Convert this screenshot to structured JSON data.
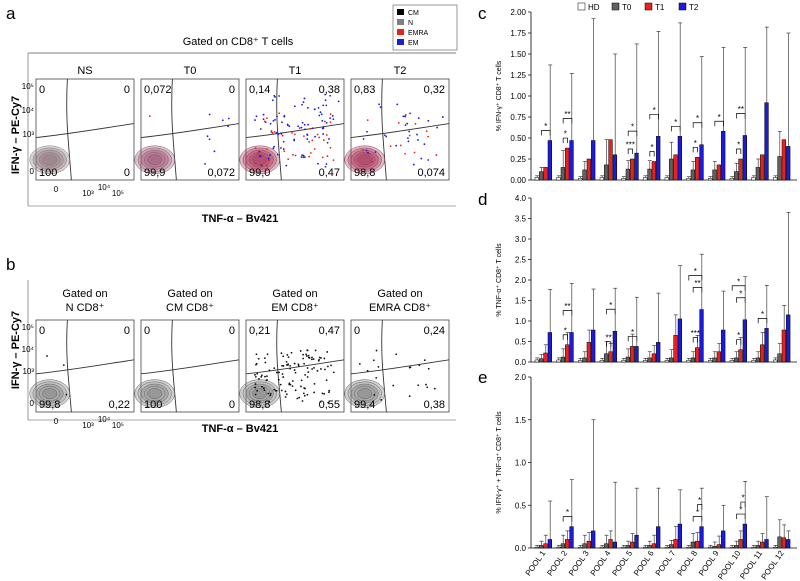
{
  "figure": {
    "panel_labels": {
      "a": "a",
      "b": "b",
      "c": "c",
      "d": "d",
      "e": "e"
    }
  },
  "panel_a": {
    "gate_title": "Gated on CD8⁺ T cells",
    "y_axis_label": "IFN-γ – PE-Cy7",
    "x_axis_label": "TNF-α – Bv421",
    "legend": [
      {
        "label": "CM",
        "color": "#000000"
      },
      {
        "label": "N",
        "color": "#808080"
      },
      {
        "label": "EMRA",
        "color": "#e8231e"
      },
      {
        "label": "EM",
        "color": "#1c1cd6"
      }
    ],
    "plots": [
      {
        "title": "NS",
        "ul": "0",
        "ur": "0",
        "ll": "100",
        "lr": "0"
      },
      {
        "title": "T0",
        "ul": "0,072",
        "ur": "0",
        "ll": "99,9",
        "lr": "0,072"
      },
      {
        "title": "T1",
        "ul": "0,14",
        "ur": "0,38",
        "ll": "99,0",
        "lr": "0,47"
      },
      {
        "title": "T2",
        "ul": "0,83",
        "ur": "0,32",
        "ll": "98,8",
        "lr": "0,074"
      }
    ],
    "y_ticks": [
      "10⁵",
      "10⁴",
      "10³",
      "0"
    ],
    "x_ticks": [
      "0",
      "10³",
      "10⁴",
      "10⁵"
    ]
  },
  "panel_b": {
    "y_axis_label": "IFN-γ – PE-Cy7",
    "x_axis_label": "TNF-α – Bv421",
    "plots": [
      {
        "title_line1": "Gated on",
        "title_line2": "N CD8⁺",
        "ul": "0",
        "ur": "0",
        "ll": "99,8",
        "lr": "0,22"
      },
      {
        "title_line1": "Gated on",
        "title_line2": "CM CD8⁺",
        "ul": "0",
        "ur": "0",
        "ll": "100",
        "lr": "0"
      },
      {
        "title_line1": "Gated on",
        "title_line2": "EM CD8⁺",
        "ul": "0,21",
        "ur": "0,47",
        "ll": "98,8",
        "lr": "0,55"
      },
      {
        "title_line1": "Gated on",
        "title_line2": "EMRA CD8⁺",
        "ul": "0",
        "ur": "0,24",
        "ll": "99,4",
        "lr": "0,38"
      }
    ],
    "y_ticks": [
      "10⁵",
      "10⁴",
      "10³",
      "0"
    ],
    "x_ticks": [
      "0",
      "10³",
      "10⁴",
      "10⁵"
    ]
  },
  "chart_data": [
    {
      "type": "bar",
      "panel": "c",
      "legend": [
        "HD",
        "T0",
        "T1",
        "T2"
      ],
      "ylabel": "% IFN-γ⁺ CD8⁺ T cells",
      "ylim": [
        0,
        2.0
      ],
      "yticks": [
        "0.00",
        "0.25",
        "0.50",
        "0.75",
        "1.00",
        "1.25",
        "1.50",
        "1.75",
        "2.00"
      ],
      "categories": [
        "POOL 1",
        "POOL 2",
        "POOL 3",
        "POOL 4",
        "POOL 5",
        "POOL 6",
        "POOL 7",
        "POOL 8",
        "POOL 9",
        "POOL 10",
        "POOL 11",
        "POOL 12"
      ],
      "series": [
        {
          "name": "HD",
          "color": "#ffffff",
          "values": [
            0.03,
            0.03,
            0.02,
            0.03,
            0.02,
            0.03,
            0.03,
            0.02,
            0.02,
            0.02,
            0.03,
            0.03
          ],
          "errors": [
            0.02,
            0.02,
            0.02,
            0.02,
            0.02,
            0.02,
            0.02,
            0.02,
            0.02,
            0.02,
            0.02,
            0.02
          ]
        },
        {
          "name": "T0",
          "color": "#606060",
          "values": [
            0.1,
            0.15,
            0.12,
            0.18,
            0.13,
            0.13,
            0.25,
            0.12,
            0.12,
            0.1,
            0.15,
            0.28
          ],
          "errors": [
            0.05,
            0.2,
            0.1,
            0.3,
            0.1,
            0.1,
            0.2,
            0.1,
            0.1,
            0.1,
            0.1,
            0.3
          ]
        },
        {
          "name": "T1",
          "color": "#e8231e",
          "values": [
            0.15,
            0.38,
            0.25,
            0.48,
            0.25,
            0.22,
            0.3,
            0.27,
            0.18,
            0.25,
            0.3,
            0.48
          ]
        },
        {
          "name": "T2",
          "color": "#1c1cd6",
          "values": [
            0.47,
            0.47,
            0.47,
            0.3,
            0.32,
            0.52,
            0.52,
            0.42,
            0.58,
            0.53,
            0.92,
            0.4
          ],
          "errors": [
            0.9,
            0.8,
            1.45,
            1.2,
            1.3,
            1.25,
            1.35,
            1.05,
            1.0,
            1.05,
            0.9,
            1.35
          ]
        }
      ],
      "significance": [
        {
          "pool": 1,
          "from": "T0",
          "to": "T2",
          "label": "*"
        },
        {
          "pool": 2,
          "from": "T0",
          "to": "T1",
          "label": "*"
        },
        {
          "pool": 2,
          "from": "T0",
          "to": "T2",
          "label": "**"
        },
        {
          "pool": 5,
          "from": "T0",
          "to": "T1",
          "label": "***"
        },
        {
          "pool": 5,
          "from": "T0",
          "to": "T2",
          "label": "*"
        },
        {
          "pool": 6,
          "from": "T0",
          "to": "T1",
          "label": "*"
        },
        {
          "pool": 6,
          "from": "T0",
          "to": "T2",
          "label": "*"
        },
        {
          "pool": 7,
          "from": "T0",
          "to": "T2",
          "label": "*"
        },
        {
          "pool": 8,
          "from": "T0",
          "to": "T1",
          "label": "*"
        },
        {
          "pool": 8,
          "from": "T0",
          "to": "T2",
          "label": "*"
        },
        {
          "pool": 9,
          "from": "T0",
          "to": "T2",
          "label": "*"
        },
        {
          "pool": 10,
          "from": "T0",
          "to": "T1",
          "label": "*"
        },
        {
          "pool": 10,
          "from": "T0",
          "to": "T2",
          "label": "**"
        }
      ]
    },
    {
      "type": "bar",
      "panel": "d",
      "ylabel": "% TNF-α⁺ CD8⁺ T cells",
      "ylim": [
        0,
        4.0
      ],
      "yticks": [
        "0.0",
        "0.5",
        "1.0",
        "1.5",
        "2.0",
        "2.5",
        "3.0",
        "3.5",
        "4.0"
      ],
      "categories": [
        "POOL 1",
        "POOL 2",
        "POOL 3",
        "POOL 4",
        "POOL 5",
        "POOL 6",
        "POOL 7",
        "POOL 8",
        "POOL 9",
        "POOL 10",
        "POOL 11",
        "POOL 12"
      ],
      "series": [
        {
          "name": "HD",
          "color": "#ffffff",
          "values": [
            0.05,
            0.05,
            0.04,
            0.04,
            0.04,
            0.04,
            0.04,
            0.04,
            0.04,
            0.04,
            0.04,
            0.05
          ],
          "errors": [
            0.05,
            0.05,
            0.05,
            0.05,
            0.05,
            0.05,
            0.05,
            0.05,
            0.05,
            0.05,
            0.05,
            0.05
          ]
        },
        {
          "name": "T0",
          "color": "#606060",
          "values": [
            0.08,
            0.12,
            0.1,
            0.2,
            0.12,
            0.1,
            0.1,
            0.1,
            0.1,
            0.1,
            0.1,
            0.2
          ],
          "errors": [
            0.1,
            0.2,
            0.15,
            0.3,
            0.2,
            0.15,
            0.2,
            0.15,
            0.15,
            0.15,
            0.15,
            0.25
          ]
        },
        {
          "name": "T1",
          "color": "#e8231e",
          "values": [
            0.22,
            0.42,
            0.48,
            0.25,
            0.38,
            0.2,
            0.65,
            0.35,
            0.25,
            0.3,
            0.42,
            0.78
          ],
          "errors": [
            0.2,
            0.3,
            0.3,
            0.2,
            0.3,
            0.2,
            0.5,
            0.3,
            0.2,
            0.3,
            0.3,
            0.6
          ]
        },
        {
          "name": "T2",
          "color": "#1c1cd6",
          "values": [
            0.72,
            0.72,
            0.78,
            0.75,
            0.38,
            0.48,
            1.05,
            1.28,
            0.78,
            1.03,
            0.82,
            1.15
          ],
          "errors": [
            1.05,
            1.2,
            1.0,
            1.05,
            1.2,
            1.2,
            1.3,
            1.35,
            0.95,
            1.05,
            1.05,
            2.5
          ]
        }
      ],
      "significance": [
        {
          "pool": 2,
          "from": "T0",
          "to": "T1",
          "label": "*"
        },
        {
          "pool": 2,
          "from": "T0",
          "to": "T2",
          "label": "**"
        },
        {
          "pool": 4,
          "from": "T0",
          "to": "T1",
          "label": "**"
        },
        {
          "pool": 4,
          "from": "T0",
          "to": "T2",
          "label": "*"
        },
        {
          "pool": 5,
          "from": "T0",
          "to": "T2",
          "label": "*"
        },
        {
          "pool": 8,
          "from": "T0",
          "to": "T1",
          "label": "***"
        },
        {
          "pool": 8,
          "from": "T0",
          "to": "T2",
          "label": "**"
        },
        {
          "pool": 8,
          "from": "HD",
          "to": "T2",
          "label": "*"
        },
        {
          "pool": 10,
          "from": "T0",
          "to": "T1",
          "label": "*"
        },
        {
          "pool": 10,
          "from": "T0",
          "to": "T2",
          "label": "*"
        },
        {
          "pool": 10,
          "from": "HD",
          "to": "T2",
          "label": "*"
        },
        {
          "pool": 11,
          "from": "T0",
          "to": "T2",
          "label": "*"
        }
      ]
    },
    {
      "type": "bar",
      "panel": "e",
      "ylabel": "% IFN-γ⁺ + TNF-α⁺ CD8⁺ T cells",
      "ylim": [
        0,
        2.0
      ],
      "yticks": [
        "0.0",
        "0.5",
        "1.0",
        "1.5",
        "2.0"
      ],
      "categories": [
        "POOL 1",
        "POOL 2",
        "POOL 3",
        "POOL 4",
        "POOL 5",
        "POOL 6",
        "POOL 7",
        "POOL 8",
        "POOL 9",
        "POOL 10",
        "POOL 11",
        "POOL 12"
      ],
      "series": [
        {
          "name": "HD",
          "color": "#ffffff",
          "values": [
            0.01,
            0.01,
            0.01,
            0.01,
            0.01,
            0.01,
            0.01,
            0.01,
            0.01,
            0.01,
            0.01,
            0.01
          ],
          "errors": [
            0.02,
            0.02,
            0.02,
            0.02,
            0.02,
            0.02,
            0.02,
            0.02,
            0.02,
            0.02,
            0.02,
            0.02
          ]
        },
        {
          "name": "T0",
          "color": "#606060",
          "values": [
            0.03,
            0.05,
            0.05,
            0.05,
            0.03,
            0.03,
            0.04,
            0.07,
            0.02,
            0.03,
            0.03,
            0.13
          ],
          "errors": [
            0.05,
            0.1,
            0.1,
            0.1,
            0.05,
            0.05,
            0.05,
            0.1,
            0.05,
            0.05,
            0.05,
            0.2
          ]
        },
        {
          "name": "T1",
          "color": "#e8231e",
          "values": [
            0.05,
            0.1,
            0.08,
            0.1,
            0.07,
            0.05,
            0.1,
            0.08,
            0.04,
            0.1,
            0.07,
            0.12
          ],
          "errors": [
            0.1,
            0.1,
            0.1,
            0.1,
            0.1,
            0.1,
            0.15,
            0.1,
            0.1,
            0.1,
            0.1,
            0.15
          ]
        },
        {
          "name": "T2",
          "color": "#1c1cd6",
          "values": [
            0.1,
            0.25,
            0.2,
            0.07,
            0.15,
            0.25,
            0.28,
            0.25,
            0.2,
            0.28,
            0.1,
            0.1
          ],
          "errors": [
            0.45,
            0.55,
            1.3,
            0.7,
            0.55,
            0.45,
            0.4,
            0.45,
            0.3,
            0.5,
            0.5,
            0.1
          ]
        }
      ],
      "significance": [
        {
          "pool": 2,
          "from": "T0",
          "to": "T2",
          "label": "*"
        },
        {
          "pool": 8,
          "from": "T0",
          "to": "T2",
          "label": "*"
        },
        {
          "pool": 8,
          "from": "T1",
          "to": "T2",
          "label": "*"
        },
        {
          "pool": 10,
          "from": "T0",
          "to": "T2",
          "label": "*"
        },
        {
          "pool": 10,
          "from": "T1",
          "to": "T2",
          "label": "*"
        }
      ]
    }
  ]
}
